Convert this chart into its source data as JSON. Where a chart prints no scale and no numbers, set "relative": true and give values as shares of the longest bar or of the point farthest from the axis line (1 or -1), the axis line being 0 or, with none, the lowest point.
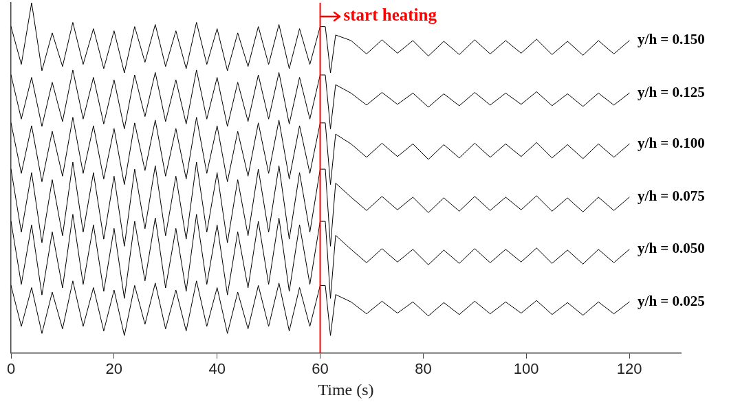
{
  "chart_data": {
    "type": "line",
    "relative": true,
    "xlabel": "Time (s)",
    "xlim": [
      0,
      130
    ],
    "xticks": [
      0,
      20,
      40,
      60,
      80,
      100,
      120
    ],
    "grid": false,
    "legend": false,
    "marker": "none",
    "line_style": "solid",
    "x": [
      0,
      2,
      4,
      6,
      8,
      10,
      12,
      14,
      16,
      18,
      20,
      22,
      24,
      26,
      28,
      30,
      32,
      34,
      36,
      38,
      40,
      42,
      44,
      46,
      48,
      50,
      52,
      54,
      56,
      58,
      60,
      61,
      62,
      63,
      66,
      69,
      72,
      75,
      78,
      81,
      84,
      87,
      90,
      93,
      96,
      99,
      102,
      105,
      108,
      111,
      114,
      117,
      120
    ],
    "series": [
      {
        "name": "y/h = 0.150",
        "color": "#000000",
        "values": [
          0.932,
          0.824,
          1.0,
          0.806,
          0.914,
          0.818,
          0.944,
          0.824,
          0.926,
          0.812,
          0.92,
          0.8,
          0.932,
          0.83,
          0.938,
          0.818,
          0.92,
          0.812,
          0.944,
          0.824,
          0.926,
          0.806,
          0.914,
          0.818,
          0.932,
          0.824,
          0.938,
          0.812,
          0.926,
          0.824,
          0.932,
          0.932,
          0.8,
          0.908,
          0.892,
          0.854,
          0.894,
          0.856,
          0.892,
          0.848,
          0.89,
          0.852,
          0.894,
          0.854,
          0.892,
          0.856,
          0.896,
          0.852,
          0.89,
          0.85,
          0.892,
          0.854,
          0.892
        ]
      },
      {
        "name": "y/h = 0.125",
        "color": "#000000",
        "values": [
          0.794,
          0.668,
          0.787,
          0.647,
          0.773,
          0.661,
          0.808,
          0.668,
          0.787,
          0.654,
          0.78,
          0.64,
          0.794,
          0.675,
          0.801,
          0.661,
          0.78,
          0.654,
          0.808,
          0.668,
          0.787,
          0.647,
          0.773,
          0.661,
          0.794,
          0.668,
          0.801,
          0.654,
          0.787,
          0.668,
          0.794,
          0.794,
          0.64,
          0.766,
          0.742,
          0.708,
          0.744,
          0.71,
          0.742,
          0.702,
          0.74,
          0.706,
          0.744,
          0.708,
          0.742,
          0.71,
          0.746,
          0.706,
          0.74,
          0.704,
          0.742,
          0.708,
          0.742
        ]
      },
      {
        "name": "y/h = 0.100",
        "color": "#000000",
        "values": [
          0.657,
          0.513,
          0.649,
          0.489,
          0.633,
          0.505,
          0.673,
          0.513,
          0.649,
          0.497,
          0.641,
          0.481,
          0.657,
          0.521,
          0.665,
          0.505,
          0.641,
          0.497,
          0.673,
          0.513,
          0.649,
          0.489,
          0.633,
          0.505,
          0.657,
          0.513,
          0.665,
          0.497,
          0.649,
          0.513,
          0.657,
          0.657,
          0.481,
          0.625,
          0.597,
          0.559,
          0.599,
          0.561,
          0.597,
          0.553,
          0.595,
          0.557,
          0.599,
          0.559,
          0.597,
          0.561,
          0.601,
          0.557,
          0.595,
          0.555,
          0.597,
          0.559,
          0.597
        ]
      },
      {
        "name": "y/h = 0.075",
        "color": "#000000",
        "values": [
          0.525,
          0.345,
          0.515,
          0.315,
          0.495,
          0.335,
          0.545,
          0.345,
          0.515,
          0.325,
          0.505,
          0.305,
          0.525,
          0.355,
          0.535,
          0.335,
          0.505,
          0.325,
          0.545,
          0.345,
          0.515,
          0.315,
          0.495,
          0.335,
          0.525,
          0.345,
          0.535,
          0.325,
          0.515,
          0.345,
          0.525,
          0.525,
          0.305,
          0.485,
          0.445,
          0.407,
          0.447,
          0.409,
          0.445,
          0.401,
          0.443,
          0.405,
          0.447,
          0.407,
          0.445,
          0.409,
          0.449,
          0.405,
          0.443,
          0.403,
          0.445,
          0.407,
          0.445
        ]
      },
      {
        "name": "y/h = 0.050",
        "color": "#000000",
        "values": [
          0.376,
          0.196,
          0.366,
          0.166,
          0.346,
          0.186,
          0.396,
          0.196,
          0.366,
          0.176,
          0.356,
          0.156,
          0.376,
          0.206,
          0.386,
          0.186,
          0.356,
          0.176,
          0.396,
          0.196,
          0.366,
          0.166,
          0.346,
          0.186,
          0.376,
          0.196,
          0.386,
          0.176,
          0.366,
          0.196,
          0.376,
          0.376,
          0.156,
          0.336,
          0.296,
          0.258,
          0.298,
          0.26,
          0.296,
          0.252,
          0.294,
          0.256,
          0.298,
          0.258,
          0.296,
          0.26,
          0.3,
          0.256,
          0.294,
          0.254,
          0.296,
          0.258,
          0.296
        ]
      },
      {
        "name": "y/h = 0.025",
        "color": "#000000",
        "values": [
          0.193,
          0.076,
          0.187,
          0.056,
          0.174,
          0.069,
          0.206,
          0.076,
          0.187,
          0.063,
          0.18,
          0.05,
          0.193,
          0.082,
          0.2,
          0.069,
          0.18,
          0.063,
          0.206,
          0.076,
          0.187,
          0.056,
          0.174,
          0.069,
          0.193,
          0.076,
          0.2,
          0.063,
          0.187,
          0.076,
          0.193,
          0.193,
          0.05,
          0.167,
          0.146,
          0.112,
          0.148,
          0.114,
          0.146,
          0.106,
          0.144,
          0.11,
          0.148,
          0.112,
          0.146,
          0.114,
          0.15,
          0.11,
          0.144,
          0.108,
          0.146,
          0.112,
          0.146
        ]
      }
    ],
    "ref_lines": [
      {
        "axis": "x",
        "value": 60,
        "label": "start heating",
        "color": "#ff0000"
      }
    ]
  }
}
